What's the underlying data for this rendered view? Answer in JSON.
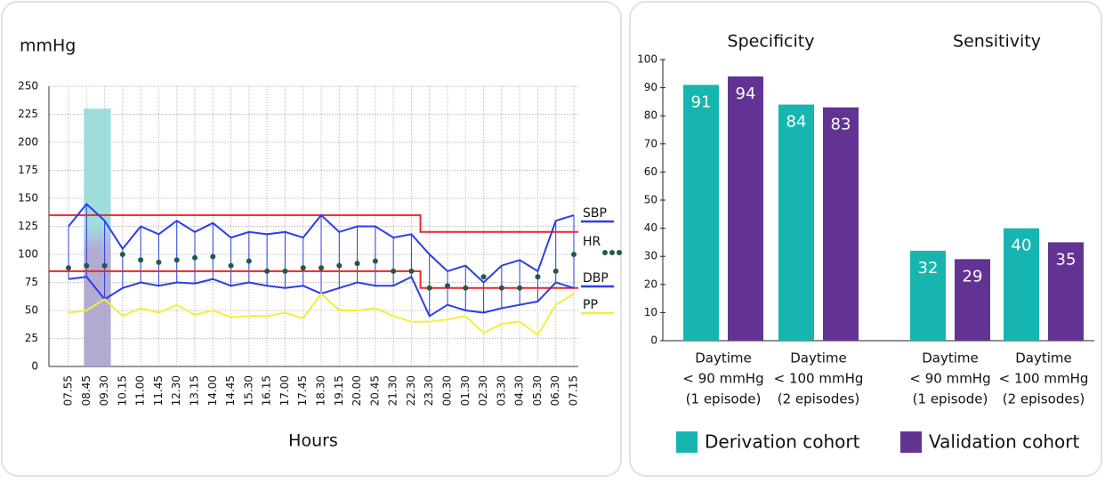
{
  "chart_data": [
    {
      "type": "line",
      "y_label": "mmHg",
      "x_label": "Hours",
      "categories": [
        "07.55",
        "08.45",
        "09.30",
        "10.15",
        "11.00",
        "11.45",
        "12.30",
        "13.15",
        "14.00",
        "14.45",
        "15.30",
        "16.15",
        "17.00",
        "17.45",
        "18.30",
        "19.15",
        "20.00",
        "20.45",
        "21.30",
        "22.30",
        "23.30",
        "00.30",
        "01.30",
        "02.30",
        "03.30",
        "04.30",
        "05.30",
        "06.30",
        "07.15"
      ],
      "ylim": [
        0,
        250
      ],
      "yticks": [
        0,
        25,
        50,
        75,
        100,
        125,
        150,
        175,
        200,
        225,
        250
      ],
      "grid": true,
      "series": [
        {
          "name": "SBP",
          "color": "#2b3ee6",
          "values": [
            125,
            145,
            130,
            105,
            125,
            118,
            130,
            120,
            128,
            115,
            120,
            118,
            120,
            115,
            135,
            120,
            125,
            125,
            115,
            118,
            100,
            85,
            90,
            75,
            90,
            95,
            85,
            130,
            135
          ]
        },
        {
          "name": "HR",
          "color": "#1e5b45",
          "marker": "dot",
          "values": [
            88,
            90,
            90,
            100,
            95,
            93,
            95,
            97,
            98,
            90,
            94,
            85,
            85,
            88,
            88,
            90,
            92,
            94,
            85,
            85,
            70,
            72,
            70,
            80,
            70,
            70,
            80,
            85,
            100
          ]
        },
        {
          "name": "DBP",
          "color": "#2b3ee6",
          "values": [
            78,
            80,
            60,
            70,
            75,
            72,
            75,
            74,
            78,
            72,
            75,
            72,
            70,
            72,
            65,
            70,
            75,
            72,
            72,
            80,
            45,
            55,
            50,
            48,
            52,
            55,
            58,
            75,
            70
          ]
        },
        {
          "name": "PP",
          "color": "#f2ee3c",
          "values": [
            48,
            50,
            60,
            45,
            52,
            48,
            55,
            46,
            50,
            44,
            45,
            45,
            48,
            43,
            65,
            50,
            50,
            52,
            45,
            40,
            40,
            42,
            45,
            30,
            38,
            40,
            28,
            55,
            65
          ]
        }
      ],
      "reference_lines": [
        {
          "color": "#e8262b",
          "values": [
            135,
            135,
            135,
            135,
            135,
            135,
            135,
            135,
            135,
            135,
            135,
            135,
            135,
            135,
            135,
            135,
            135,
            135,
            135,
            135,
            120,
            120,
            120,
            120,
            120,
            120,
            120,
            120,
            120
          ]
        },
        {
          "color": "#e8262b",
          "values": [
            85,
            85,
            85,
            85,
            85,
            85,
            85,
            85,
            85,
            85,
            85,
            85,
            85,
            85,
            85,
            85,
            85,
            85,
            85,
            85,
            70,
            70,
            70,
            70,
            70,
            70,
            70,
            70,
            70
          ]
        }
      ],
      "highlight": {
        "x": [
          1,
          2
        ],
        "y": [
          0,
          230
        ],
        "colors": [
          "#8fd8d8",
          "#a79ccb"
        ]
      }
    },
    {
      "type": "bar",
      "groups": [
        {
          "label": "Specificity",
          "categories": [
            0,
            1
          ]
        },
        {
          "label": "Sensitivity",
          "categories": [
            2,
            3
          ]
        }
      ],
      "categories": [
        [
          "Daytime",
          "< 90 mmHg",
          "(1 episode)"
        ],
        [
          "Daytime",
          "< 100 mmHg",
          "(2 episodes)"
        ],
        [
          "Daytime",
          "< 90 mmHg",
          "(1 episode)"
        ],
        [
          "Daytime",
          "< 100 mmHg",
          "(2 episodes)"
        ]
      ],
      "ylim": [
        0,
        100
      ],
      "yticks": [
        0,
        10,
        20,
        30,
        40,
        50,
        60,
        70,
        80,
        90,
        100
      ],
      "series": [
        {
          "name": "Derivation cohort",
          "color": "#17b5b0",
          "values": [
            91,
            84,
            32,
            40
          ]
        },
        {
          "name": "Validation cohort",
          "color": "#633393",
          "values": [
            94,
            83,
            29,
            35
          ]
        }
      ]
    }
  ]
}
